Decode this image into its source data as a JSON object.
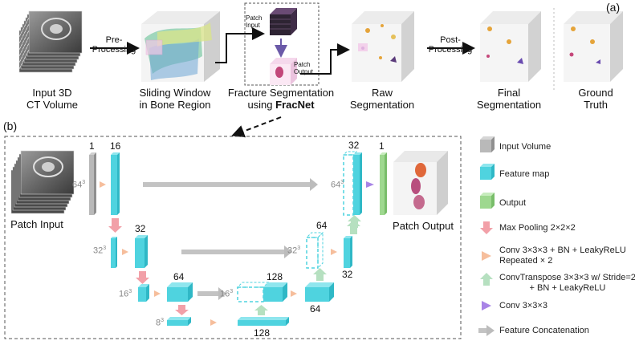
{
  "panel_a": {
    "label": "(a)",
    "steps": [
      {
        "line1": "Input 3D",
        "line2": "CT Volume"
      },
      {
        "line1": "Sliding Window",
        "line2": "in Bone Region"
      },
      {
        "line1": "Fracture Segmentation",
        "line2_prefix": "using ",
        "line2_bold": "FracNet"
      },
      {
        "line1": "Raw",
        "line2": "Segmentation"
      },
      {
        "line1": "Final",
        "line2": "Segmentation"
      },
      {
        "line1": "Ground",
        "line2": "Truth"
      }
    ],
    "arrow_preprocessing": {
      "line1": "Pre-",
      "line2": "Processing"
    },
    "arrow_postprocessing": {
      "line1": "Post-",
      "line2": "Processing"
    },
    "patch_input": {
      "line1": "Patch",
      "line2": "Input"
    },
    "patch_output": {
      "line1": "Patch",
      "line2": "Output"
    }
  },
  "panel_b": {
    "label": "(b)",
    "patch_input_label": "Patch Input",
    "patch_output_label": "Patch Output",
    "channels": {
      "in": "1",
      "c16": "16",
      "c32a": "32",
      "c64a": "64",
      "c128a": "128",
      "c128b": "128",
      "c64b": "64",
      "c64c": "64",
      "c32b": "32",
      "c32c": "32",
      "out": "1"
    },
    "sizes": {
      "s64": "64",
      "s32": "32",
      "s16": "16",
      "s8": "8",
      "exp": "3"
    }
  },
  "legend": [
    {
      "label": "Input Volume",
      "kind": "gray-cube",
      "color": "#b9b9b9"
    },
    {
      "label": "Feature map",
      "kind": "cyan-cube",
      "color": "#4fd3df"
    },
    {
      "label": "Output",
      "kind": "green-cube",
      "color": "#9ed88f"
    },
    {
      "label": "Max Pooling 2×2×2",
      "kind": "arrow-down",
      "color": "#f2a0a8"
    },
    {
      "label": "Conv 3×3×3 + BN + LeakyReLU",
      "label2": "Repeated × 2",
      "kind": "arrow-right",
      "color": "#f6be9c"
    },
    {
      "label": "ConvTranspose 3×3×3 w/ Stride=2",
      "label2": "+ BN + LeakyReLU",
      "kind": "arrow-up",
      "color": "#b6e0c0"
    },
    {
      "label": "Conv 3×3×3",
      "kind": "arrow-purple",
      "color": "#a884e6"
    },
    {
      "label": "Feature Concatenation",
      "kind": "arrow-gray",
      "color": "#bcbcbc"
    }
  ]
}
